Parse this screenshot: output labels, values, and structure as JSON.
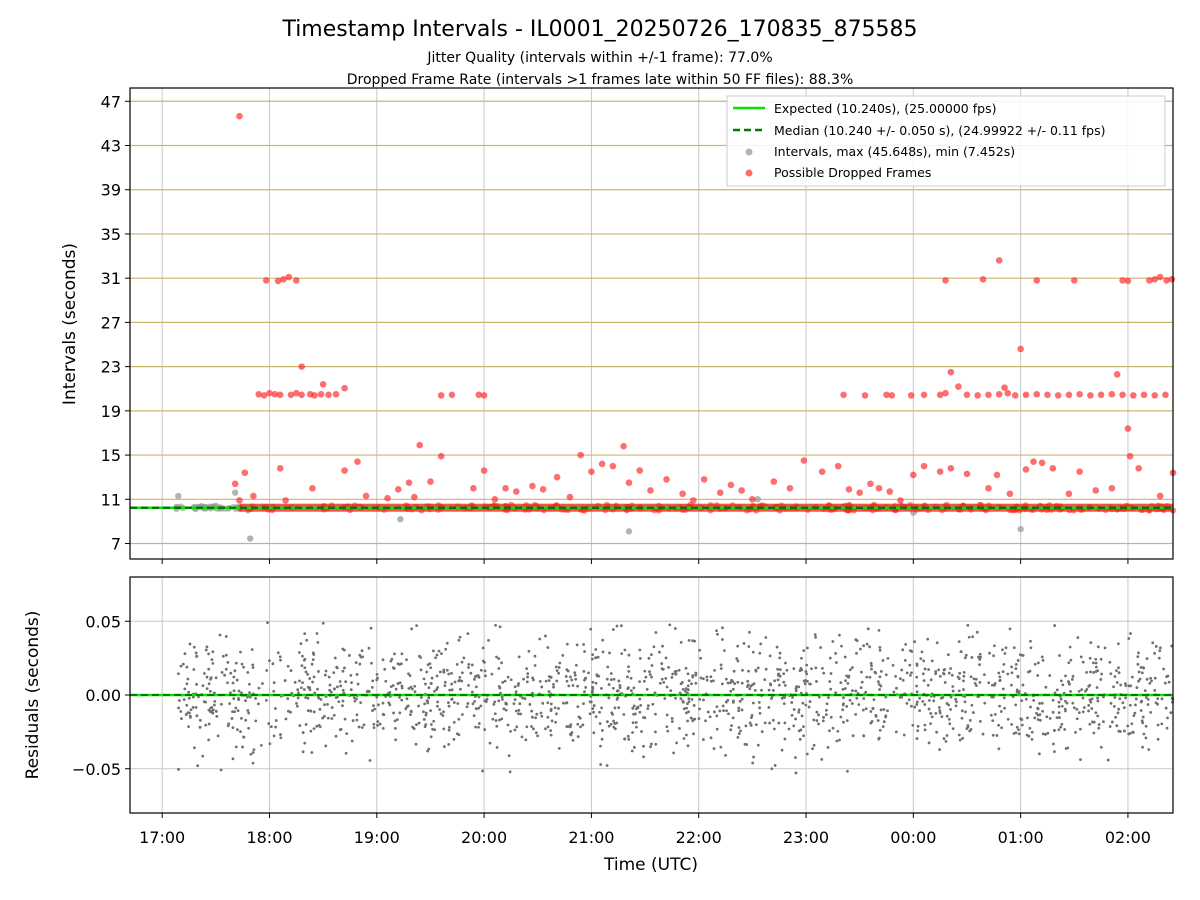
{
  "chart_data": {
    "type": "scatter",
    "title": "Timestamp Intervals - IL0001_20250726_170835_875585",
    "subtitle_1": "Jitter Quality (intervals within +/-1 frame): 77.0%",
    "subtitle_2": "Dropped Frame Rate (intervals >1 frames late within 50 FF files): 88.3%",
    "xlabel": "Time (UTC)",
    "x_ticks": [
      "17:00",
      "18:00",
      "19:00",
      "20:00",
      "21:00",
      "22:00",
      "23:00",
      "00:00",
      "01:00",
      "02:00"
    ],
    "x_range_hours": [
      16.7,
      26.42
    ],
    "top": {
      "ylabel": "Intervals (seconds)",
      "ylim": [
        5.6,
        48.2
      ],
      "y_ticks": [
        7,
        11,
        15,
        19,
        23,
        27,
        31,
        35,
        39,
        43,
        47
      ],
      "grid": true,
      "legend_position": "top-right",
      "legend": [
        "Expected (10.240s), (25.00000 fps)",
        "Median (10.240 +/- 0.050 s), (24.99922 +/- 0.11 fps)",
        "Intervals, max (45.648s), min (7.452s)",
        "Possible Dropped Frames"
      ],
      "expected_interval": 10.24,
      "median_interval": 10.24,
      "baseline_x_range": [
        16.7,
        26.42
      ],
      "dense_red_band_y": 10.24,
      "dense_red_band_x_range": [
        17.72,
        26.42
      ],
      "intervals_gray": [
        [
          17.15,
          11.3
        ],
        [
          17.3,
          10.3
        ],
        [
          17.5,
          10.4
        ],
        [
          17.68,
          11.6
        ],
        [
          17.82,
          7.45
        ],
        [
          17.8,
          10.0
        ],
        [
          19.22,
          9.2
        ],
        [
          21.35,
          8.1
        ],
        [
          22.55,
          11.0
        ],
        [
          24.0,
          9.8
        ],
        [
          25.0,
          8.3
        ],
        [
          25.9,
          10.1
        ]
      ],
      "dropped_frames": [
        [
          17.72,
          45.65
        ],
        [
          17.68,
          12.4
        ],
        [
          17.77,
          13.4
        ],
        [
          17.85,
          11.3
        ],
        [
          17.72,
          10.9
        ],
        [
          17.9,
          20.5
        ],
        [
          17.95,
          20.4
        ],
        [
          18.0,
          20.6
        ],
        [
          18.05,
          20.5
        ],
        [
          18.1,
          20.45
        ],
        [
          18.2,
          20.45
        ],
        [
          18.25,
          20.6
        ],
        [
          18.3,
          20.45
        ],
        [
          18.38,
          20.5
        ],
        [
          18.42,
          20.4
        ],
        [
          18.48,
          20.5
        ],
        [
          18.55,
          20.45
        ],
        [
          18.62,
          20.5
        ],
        [
          18.7,
          21.05
        ],
        [
          18.5,
          21.4
        ],
        [
          18.3,
          23.0
        ],
        [
          17.97,
          30.8
        ],
        [
          18.08,
          30.75
        ],
        [
          18.13,
          30.9
        ],
        [
          18.18,
          31.1
        ],
        [
          18.25,
          30.8
        ],
        [
          18.1,
          13.8
        ],
        [
          18.15,
          10.9
        ],
        [
          18.4,
          12.0
        ],
        [
          18.7,
          13.6
        ],
        [
          18.82,
          14.4
        ],
        [
          18.9,
          11.3
        ],
        [
          19.1,
          11.1
        ],
        [
          19.2,
          11.9
        ],
        [
          19.3,
          12.5
        ],
        [
          19.35,
          11.2
        ],
        [
          19.4,
          15.9
        ],
        [
          19.5,
          12.6
        ],
        [
          19.6,
          14.9
        ],
        [
          19.6,
          20.4
        ],
        [
          19.7,
          20.45
        ],
        [
          19.9,
          12.0
        ],
        [
          19.95,
          20.45
        ],
        [
          20.0,
          20.4
        ],
        [
          20.0,
          13.6
        ],
        [
          20.1,
          11.0
        ],
        [
          20.2,
          12.0
        ],
        [
          20.3,
          11.7
        ],
        [
          20.45,
          12.2
        ],
        [
          20.55,
          11.9
        ],
        [
          20.68,
          13.0
        ],
        [
          20.8,
          11.2
        ],
        [
          20.9,
          15.0
        ],
        [
          21.0,
          13.5
        ],
        [
          21.1,
          14.2
        ],
        [
          21.2,
          14.0
        ],
        [
          21.3,
          15.8
        ],
        [
          21.35,
          12.5
        ],
        [
          21.45,
          13.6
        ],
        [
          21.55,
          11.8
        ],
        [
          21.7,
          12.8
        ],
        [
          21.85,
          11.5
        ],
        [
          21.95,
          10.9
        ],
        [
          22.05,
          12.8
        ],
        [
          22.2,
          11.6
        ],
        [
          22.3,
          12.3
        ],
        [
          22.4,
          11.8
        ],
        [
          22.5,
          11.0
        ],
        [
          22.7,
          12.6
        ],
        [
          22.85,
          12.0
        ],
        [
          22.98,
          14.5
        ],
        [
          23.15,
          13.5
        ],
        [
          23.3,
          14.0
        ],
        [
          23.4,
          11.9
        ],
        [
          23.5,
          11.6
        ],
        [
          23.6,
          12.4
        ],
        [
          23.68,
          12.0
        ],
        [
          23.78,
          11.7
        ],
        [
          23.88,
          10.9
        ],
        [
          23.35,
          20.45
        ],
        [
          23.55,
          20.4
        ],
        [
          23.75,
          20.45
        ],
        [
          23.8,
          20.4
        ],
        [
          23.98,
          20.4
        ],
        [
          24.1,
          20.45
        ],
        [
          24.25,
          20.45
        ],
        [
          24.3,
          20.6
        ],
        [
          24.35,
          22.5
        ],
        [
          24.42,
          21.2
        ],
        [
          24.5,
          20.45
        ],
        [
          24.6,
          20.4
        ],
        [
          24.7,
          20.45
        ],
        [
          24.8,
          20.5
        ],
        [
          24.88,
          20.6
        ],
        [
          24.95,
          20.4
        ],
        [
          25.05,
          20.45
        ],
        [
          25.15,
          20.5
        ],
        [
          25.25,
          20.45
        ],
        [
          25.35,
          20.4
        ],
        [
          25.45,
          20.45
        ],
        [
          25.55,
          20.5
        ],
        [
          25.65,
          20.4
        ],
        [
          25.75,
          20.45
        ],
        [
          25.85,
          20.5
        ],
        [
          25.95,
          20.45
        ],
        [
          26.05,
          20.4
        ],
        [
          26.15,
          20.45
        ],
        [
          26.25,
          20.4
        ],
        [
          26.35,
          20.45
        ],
        [
          25.0,
          24.6
        ],
        [
          25.9,
          22.3
        ],
        [
          24.85,
          21.1
        ],
        [
          24.3,
          30.8
        ],
        [
          24.65,
          30.9
        ],
        [
          24.8,
          32.6
        ],
        [
          25.15,
          30.8
        ],
        [
          25.5,
          30.8
        ],
        [
          25.95,
          30.8
        ],
        [
          26.0,
          30.75
        ],
        [
          26.2,
          30.8
        ],
        [
          26.25,
          30.9
        ],
        [
          26.3,
          31.1
        ],
        [
          26.36,
          30.8
        ],
        [
          26.41,
          30.9
        ],
        [
          24.0,
          13.2
        ],
        [
          24.1,
          14.0
        ],
        [
          24.25,
          13.5
        ],
        [
          24.35,
          13.8
        ],
        [
          24.5,
          13.3
        ],
        [
          24.7,
          12.0
        ],
        [
          24.78,
          13.2
        ],
        [
          24.9,
          11.5
        ],
        [
          25.05,
          13.7
        ],
        [
          25.12,
          14.4
        ],
        [
          25.2,
          14.3
        ],
        [
          25.3,
          13.8
        ],
        [
          25.45,
          11.5
        ],
        [
          25.55,
          13.5
        ],
        [
          25.7,
          11.8
        ],
        [
          25.85,
          12.0
        ],
        [
          26.0,
          17.4
        ],
        [
          26.02,
          14.9
        ],
        [
          26.1,
          13.8
        ],
        [
          26.3,
          11.3
        ],
        [
          26.42,
          13.4
        ]
      ]
    },
    "bottom": {
      "ylabel": "Residuals (seconds)",
      "ylim": [
        -0.08,
        0.08
      ],
      "y_ticks": [
        "0.05",
        "0.00",
        "−0.05"
      ],
      "y_tick_values": [
        0.05,
        0.0,
        -0.05
      ],
      "grid": true,
      "baseline": 0.0,
      "residuals_x_range": [
        17.15,
        26.42
      ],
      "residuals_sample_points": 1700,
      "residuals_spread": 0.02
    },
    "colors": {
      "expected_line": "#00e600",
      "median_line": "#007a00",
      "intervals": "#9a9a9a",
      "dropped": "#ff2020",
      "residuals": "#707070",
      "h_grid": "#cfb56a",
      "v_grid": "#c8c8c8"
    }
  }
}
